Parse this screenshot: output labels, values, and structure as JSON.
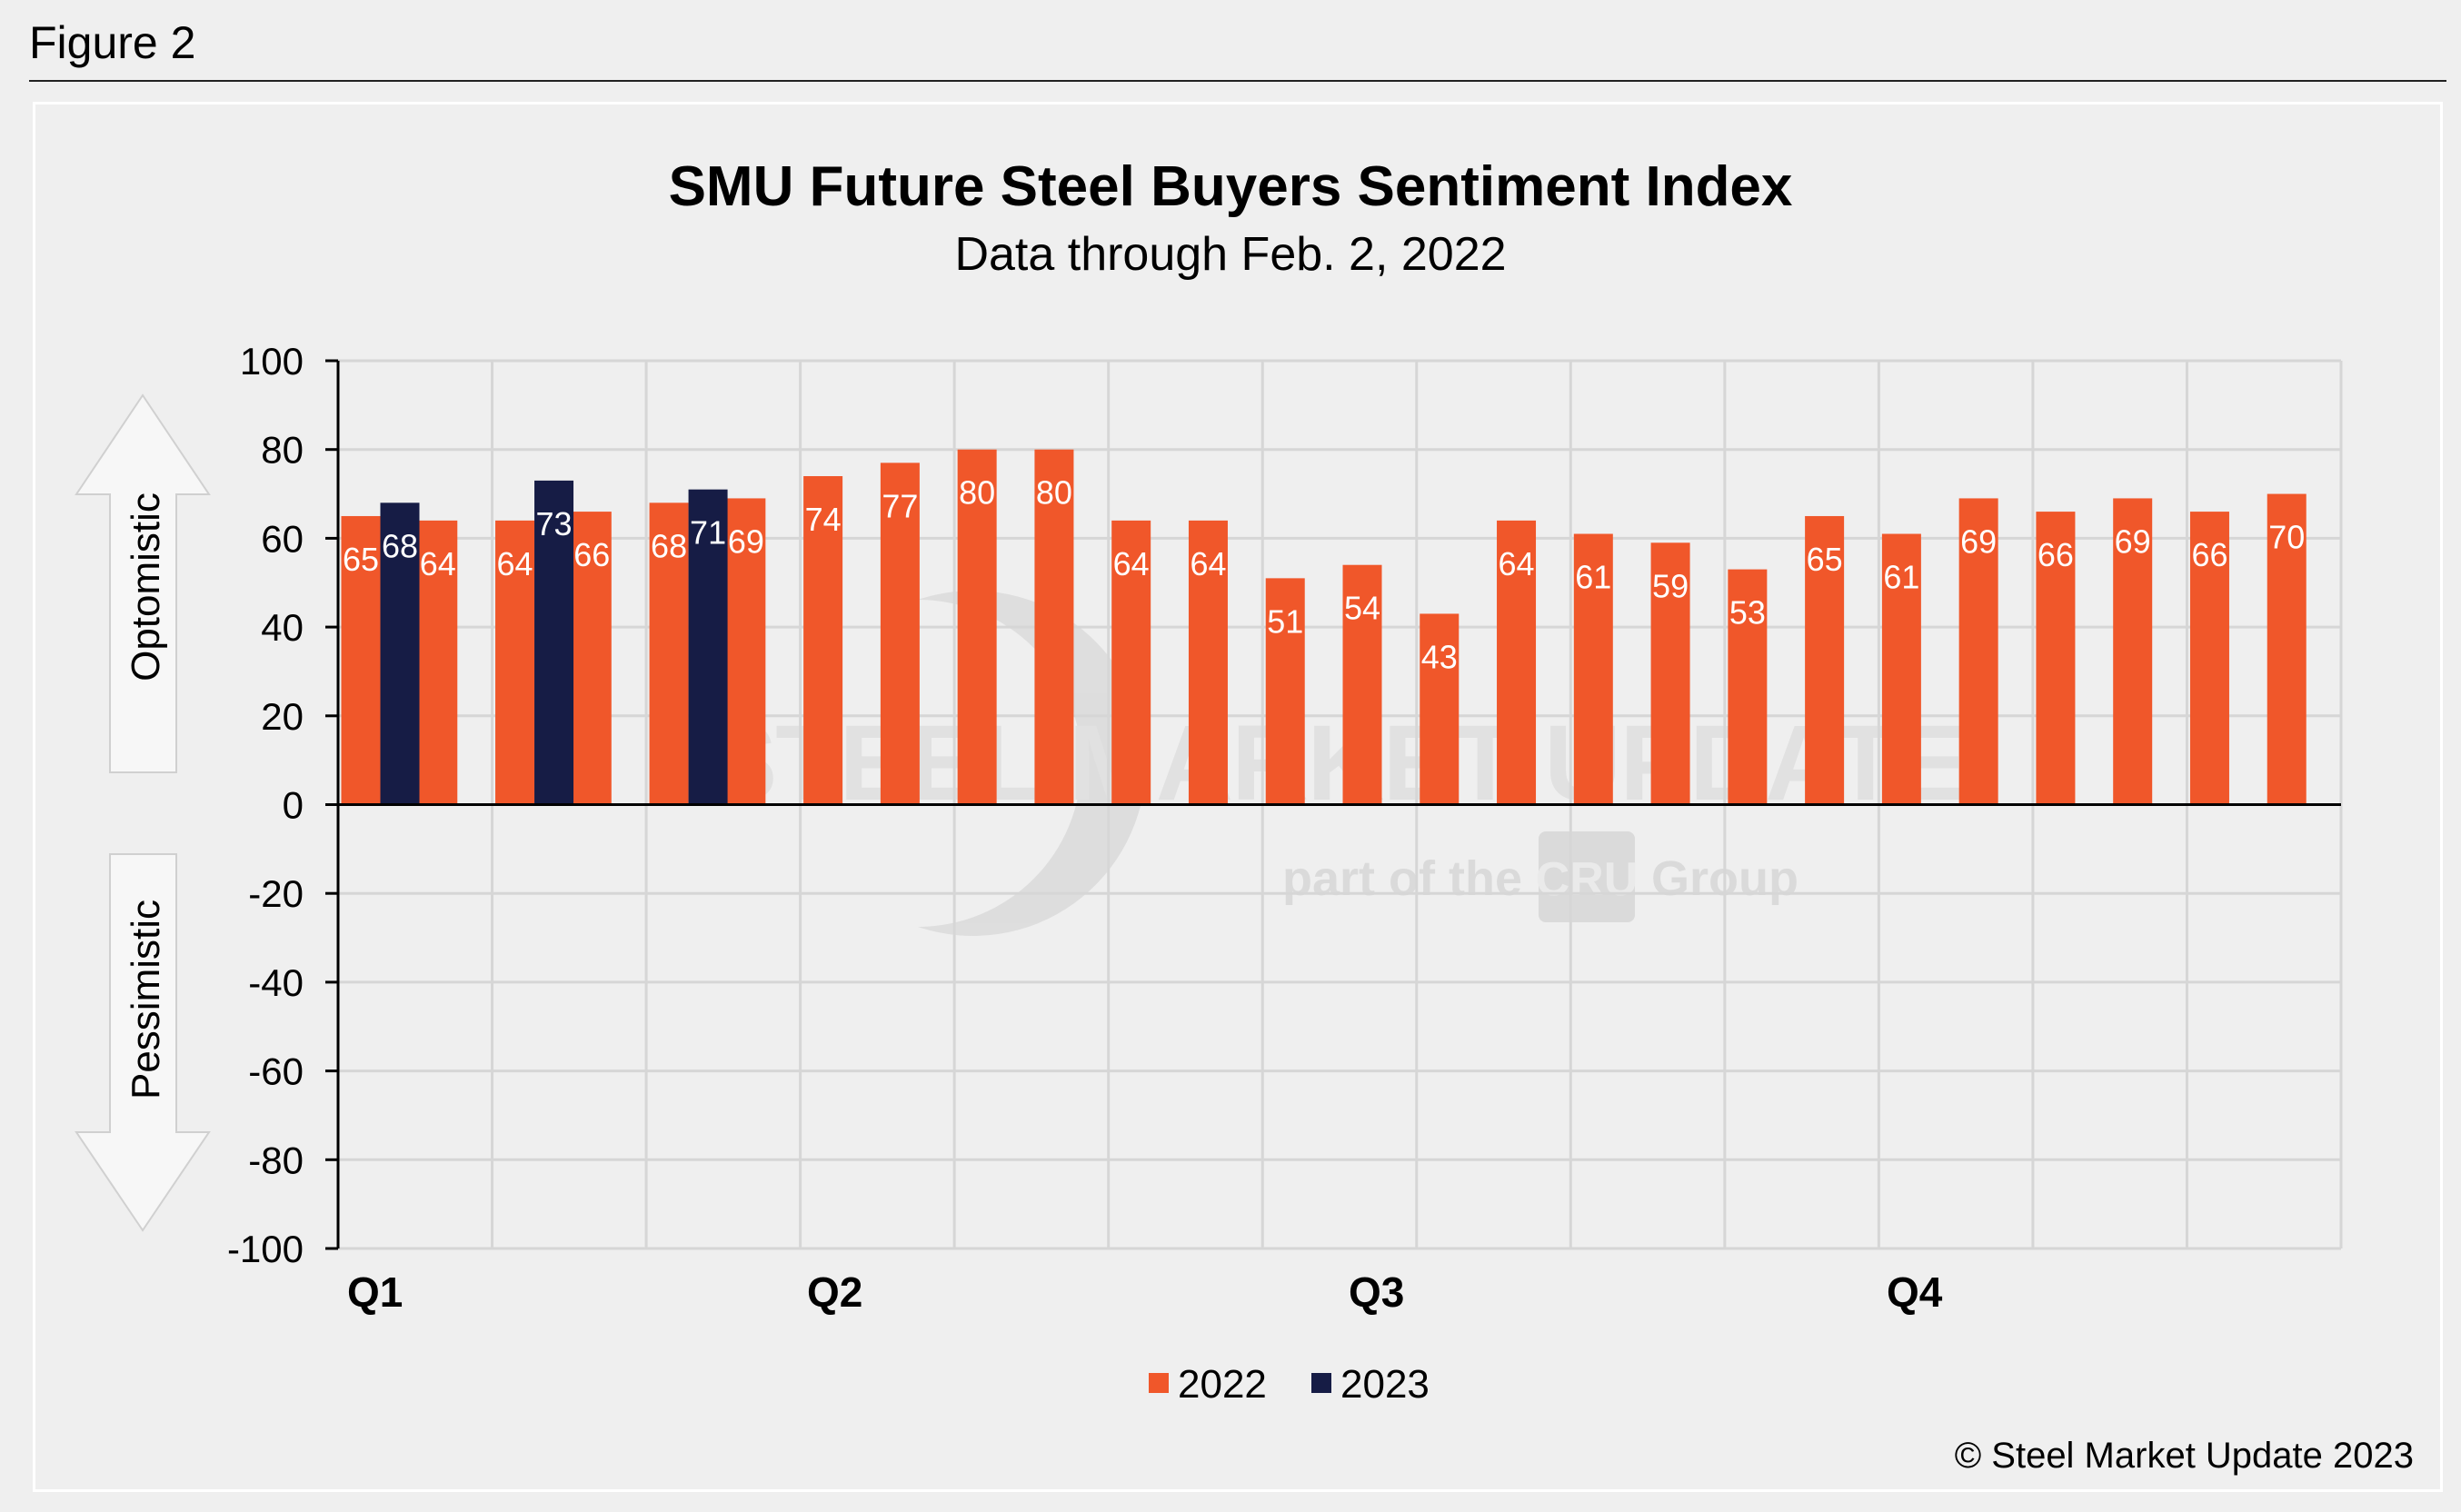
{
  "figure_label": "Figure 2",
  "copyright": "© Steel Market Update 2023",
  "watermark": {
    "brand": "STEEL MARKET UPDATE",
    "tagline": "part of the",
    "group": "Group",
    "logo_text": "CRU"
  },
  "arrows": {
    "up_label": "Optomistic",
    "down_label": "Pessimistic"
  },
  "colors": {
    "series_2022": "#f0572a",
    "series_2023": "#161c45",
    "grid": "#d6d6d6",
    "arrow_fill": "#f7f7f7"
  },
  "chart_data": {
    "type": "bar",
    "title": "SMU Future Steel Buyers Sentiment Index",
    "subtitle": "Data through Feb. 2, 2022",
    "xlabel": "",
    "ylabel": "",
    "ylim": [
      -100,
      100
    ],
    "yticks": [
      "100",
      "80",
      "60",
      "40",
      "20",
      "0",
      "-20",
      "-40",
      "-60",
      "-80",
      "-100"
    ],
    "quarter_labels": [
      "Q1",
      "Q2",
      "Q3",
      "Q4"
    ],
    "legend": [
      "2022",
      "2023"
    ],
    "series": [
      {
        "name": "2022",
        "values": [
          65,
          64,
          64,
          66,
          68,
          69,
          74,
          77,
          80,
          80,
          64,
          64,
          51,
          54,
          43,
          64,
          61,
          59,
          53,
          65,
          61,
          69,
          66,
          69,
          66,
          70
        ]
      },
      {
        "name": "2023",
        "values": [
          68,
          73,
          71
        ]
      }
    ]
  }
}
